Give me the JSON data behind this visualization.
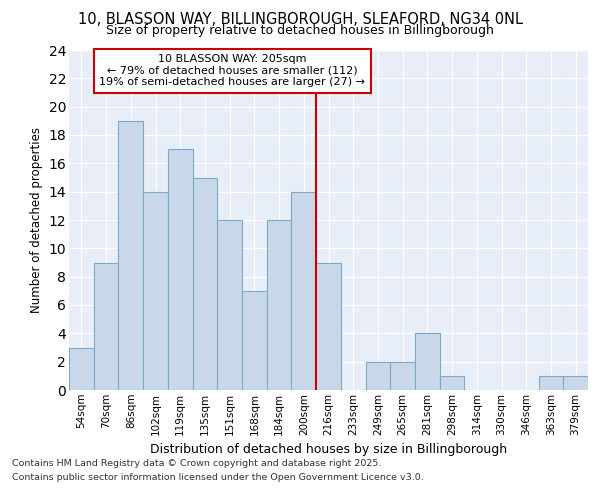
{
  "title_line1": "10, BLASSON WAY, BILLINGBOROUGH, SLEAFORD, NG34 0NL",
  "title_line2": "Size of property relative to detached houses in Billingborough",
  "xlabel": "Distribution of detached houses by size in Billingborough",
  "ylabel": "Number of detached properties",
  "bin_labels": [
    "54sqm",
    "70sqm",
    "86sqm",
    "102sqm",
    "119sqm",
    "135sqm",
    "151sqm",
    "168sqm",
    "184sqm",
    "200sqm",
    "216sqm",
    "233sqm",
    "249sqm",
    "265sqm",
    "281sqm",
    "298sqm",
    "314sqm",
    "330sqm",
    "346sqm",
    "363sqm",
    "379sqm"
  ],
  "bar_values": [
    3,
    9,
    19,
    14,
    17,
    15,
    12,
    7,
    12,
    14,
    9,
    0,
    2,
    2,
    4,
    1,
    0,
    0,
    0,
    1,
    1
  ],
  "bar_color": "#c8d8ea",
  "bar_edge_color": "#7aaac8",
  "vline_color": "#cc0000",
  "annotation_text": "10 BLASSON WAY: 205sqm\n← 79% of detached houses are smaller (112)\n19% of semi-detached houses are larger (27) →",
  "annotation_box_color": "#ffffff",
  "annotation_box_edge_color": "#cc0000",
  "ylim": [
    0,
    24
  ],
  "yticks": [
    0,
    2,
    4,
    6,
    8,
    10,
    12,
    14,
    16,
    18,
    20,
    22,
    24
  ],
  "background_color": "#e8eef8",
  "grid_color": "#ffffff",
  "footer_line1": "Contains HM Land Registry data © Crown copyright and database right 2025.",
  "footer_line2": "Contains public sector information licensed under the Open Government Licence v3.0."
}
